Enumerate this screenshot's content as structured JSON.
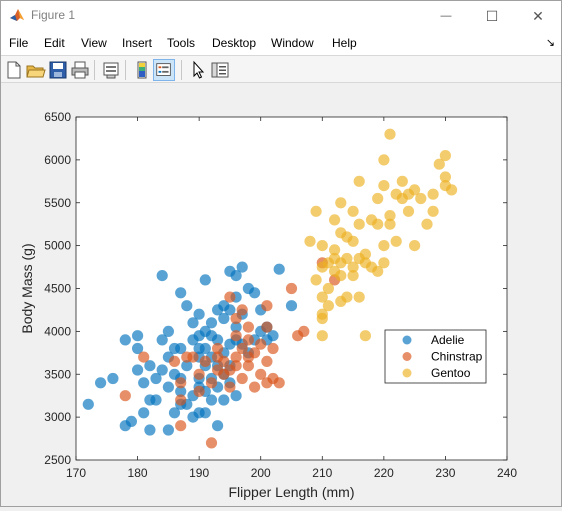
{
  "window": {
    "title": "Figure 1",
    "minimize_glyph": "—",
    "maximize_glyph": "☐",
    "close_glyph": "✕"
  },
  "menu": {
    "items": [
      {
        "name": "file",
        "label": "File"
      },
      {
        "name": "edit",
        "label": "Edit"
      },
      {
        "name": "view",
        "label": "View"
      },
      {
        "name": "insert",
        "label": "Insert"
      },
      {
        "name": "tools",
        "label": "Tools"
      },
      {
        "name": "desktop",
        "label": "Desktop"
      },
      {
        "name": "window",
        "label": "Window"
      },
      {
        "name": "help",
        "label": "Help"
      }
    ],
    "dock_arrow": "↘"
  },
  "toolbar": {
    "buttons": [
      "new-figure-icon",
      "open-file-icon",
      "save-icon",
      "print-icon",
      "print-preview-icon",
      "colorbar-icon",
      "legend-icon",
      "pointer-icon",
      "property-inspector-icon"
    ]
  },
  "chart_data": {
    "type": "scatter",
    "title": "",
    "xlabel": "Flipper Length (mm)",
    "ylabel": "Body Mass (g)",
    "xlim": [
      170,
      240
    ],
    "ylim": [
      2500,
      6500
    ],
    "xticks": [
      "170",
      "180",
      "190",
      "200",
      "210",
      "220",
      "230",
      "240"
    ],
    "yticks": [
      "2500",
      "3000",
      "3500",
      "4000",
      "4500",
      "5000",
      "5500",
      "6000",
      "6500"
    ],
    "grid": false,
    "legend_position": "lower-right",
    "series": [
      {
        "name": "Adelie",
        "color": "#0072BD",
        "points": [
          [
            172,
            3150
          ],
          [
            174,
            3400
          ],
          [
            176,
            3450
          ],
          [
            178,
            2900
          ],
          [
            178,
            3900
          ],
          [
            179,
            2950
          ],
          [
            180,
            3950
          ],
          [
            180,
            3800
          ],
          [
            180,
            3550
          ],
          [
            181,
            3400
          ],
          [
            181,
            3050
          ],
          [
            182,
            2850
          ],
          [
            182,
            3200
          ],
          [
            182,
            3600
          ],
          [
            183,
            3200
          ],
          [
            183,
            3450
          ],
          [
            184,
            3900
          ],
          [
            184,
            4650
          ],
          [
            184,
            3550
          ],
          [
            185,
            3350
          ],
          [
            185,
            3700
          ],
          [
            185,
            2850
          ],
          [
            185,
            4000
          ],
          [
            186,
            3500
          ],
          [
            186,
            3800
          ],
          [
            186,
            3050
          ],
          [
            187,
            3300
          ],
          [
            187,
            3150
          ],
          [
            187,
            4450
          ],
          [
            187,
            3800
          ],
          [
            187,
            3450
          ],
          [
            188,
            3600
          ],
          [
            188,
            4300
          ],
          [
            188,
            3150
          ],
          [
            189,
            3900
          ],
          [
            189,
            3250
          ],
          [
            189,
            4100
          ],
          [
            189,
            3000
          ],
          [
            190,
            3950
          ],
          [
            190,
            3700
          ],
          [
            190,
            3450
          ],
          [
            190,
            3800
          ],
          [
            190,
            4200
          ],
          [
            190,
            3050
          ],
          [
            190,
            3350
          ],
          [
            191,
            3600
          ],
          [
            191,
            3800
          ],
          [
            191,
            4000
          ],
          [
            191,
            3050
          ],
          [
            191,
            4600
          ],
          [
            191,
            3300
          ],
          [
            192,
            3950
          ],
          [
            192,
            3200
          ],
          [
            192,
            4100
          ],
          [
            192,
            3700
          ],
          [
            192,
            3450
          ],
          [
            193,
            3900
          ],
          [
            193,
            3600
          ],
          [
            193,
            4250
          ],
          [
            193,
            2900
          ],
          [
            193,
            3350
          ],
          [
            194,
            3750
          ],
          [
            194,
            3500
          ],
          [
            194,
            4300
          ],
          [
            194,
            4150
          ],
          [
            194,
            3200
          ],
          [
            195,
            3850
          ],
          [
            195,
            4250
          ],
          [
            195,
            3600
          ],
          [
            195,
            4700
          ],
          [
            195,
            3400
          ],
          [
            196,
            3900
          ],
          [
            196,
            4400
          ],
          [
            196,
            3250
          ],
          [
            196,
            4650
          ],
          [
            196,
            4050
          ],
          [
            197,
            4200
          ],
          [
            197,
            4750
          ],
          [
            197,
            3850
          ],
          [
            198,
            4500
          ],
          [
            198,
            3750
          ],
          [
            199,
            3900
          ],
          [
            199,
            4450
          ],
          [
            200,
            4000
          ],
          [
            200,
            4250
          ],
          [
            201,
            3900
          ],
          [
            201,
            4050
          ],
          [
            202,
            3950
          ],
          [
            203,
            4725
          ],
          [
            205,
            4300
          ]
        ]
      },
      {
        "name": "Chinstrap",
        "color": "#D95319",
        "points": [
          [
            178,
            3250
          ],
          [
            181,
            3700
          ],
          [
            186,
            3650
          ],
          [
            187,
            2900
          ],
          [
            187,
            3400
          ],
          [
            187,
            3200
          ],
          [
            188,
            3700
          ],
          [
            189,
            3700
          ],
          [
            190,
            3300
          ],
          [
            190,
            3500
          ],
          [
            191,
            3650
          ],
          [
            192,
            2700
          ],
          [
            192,
            3400
          ],
          [
            193,
            3550
          ],
          [
            193,
            3700
          ],
          [
            193,
            3800
          ],
          [
            194,
            3500
          ],
          [
            194,
            3650
          ],
          [
            195,
            3550
          ],
          [
            195,
            3350
          ],
          [
            195,
            4400
          ],
          [
            196,
            3600
          ],
          [
            196,
            3950
          ],
          [
            196,
            3700
          ],
          [
            196,
            4150
          ],
          [
            197,
            3450
          ],
          [
            197,
            3800
          ],
          [
            197,
            4250
          ],
          [
            198,
            3600
          ],
          [
            198,
            3700
          ],
          [
            198,
            4050
          ],
          [
            198,
            3900
          ],
          [
            199,
            3750
          ],
          [
            199,
            3350
          ],
          [
            200,
            3850
          ],
          [
            200,
            3500
          ],
          [
            201,
            4300
          ],
          [
            201,
            4050
          ],
          [
            201,
            3650
          ],
          [
            201,
            3400
          ],
          [
            202,
            3450
          ],
          [
            202,
            3800
          ],
          [
            203,
            3400
          ],
          [
            205,
            4500
          ],
          [
            206,
            3950
          ],
          [
            207,
            4000
          ],
          [
            210,
            4800
          ],
          [
            212,
            4600
          ]
        ]
      },
      {
        "name": "Gentoo",
        "color": "#EDB120",
        "points": [
          [
            208,
            5050
          ],
          [
            209,
            5400
          ],
          [
            209,
            4600
          ],
          [
            210,
            4200
          ],
          [
            210,
            4400
          ],
          [
            210,
            4750
          ],
          [
            210,
            5000
          ],
          [
            210,
            3950
          ],
          [
            210,
            4150
          ],
          [
            211,
            4800
          ],
          [
            211,
            4300
          ],
          [
            211,
            4500
          ],
          [
            212,
            4700
          ],
          [
            212,
            4850
          ],
          [
            212,
            4950
          ],
          [
            212,
            5300
          ],
          [
            213,
            4350
          ],
          [
            213,
            4800
          ],
          [
            213,
            5150
          ],
          [
            213,
            5500
          ],
          [
            213,
            4650
          ],
          [
            214,
            4850
          ],
          [
            214,
            5100
          ],
          [
            214,
            4400
          ],
          [
            215,
            4750
          ],
          [
            215,
            5050
          ],
          [
            215,
            5400
          ],
          [
            215,
            4650
          ],
          [
            216,
            4400
          ],
          [
            216,
            4850
          ],
          [
            216,
            5250
          ],
          [
            216,
            5750
          ],
          [
            217,
            4800
          ],
          [
            217,
            4900
          ],
          [
            217,
            3950
          ],
          [
            218,
            5300
          ],
          [
            218,
            4750
          ],
          [
            219,
            5250
          ],
          [
            219,
            5550
          ],
          [
            219,
            4700
          ],
          [
            220,
            5000
          ],
          [
            220,
            5700
          ],
          [
            220,
            6000
          ],
          [
            220,
            4800
          ],
          [
            221,
            5250
          ],
          [
            221,
            5350
          ],
          [
            221,
            6300
          ],
          [
            222,
            5600
          ],
          [
            222,
            5050
          ],
          [
            223,
            5550
          ],
          [
            223,
            5750
          ],
          [
            224,
            5400
          ],
          [
            224,
            5600
          ],
          [
            225,
            5650
          ],
          [
            225,
            5000
          ],
          [
            226,
            5550
          ],
          [
            227,
            5250
          ],
          [
            228,
            5400
          ],
          [
            228,
            5600
          ],
          [
            229,
            5950
          ],
          [
            230,
            5700
          ],
          [
            230,
            5800
          ],
          [
            230,
            6050
          ],
          [
            231,
            5650
          ]
        ]
      }
    ]
  }
}
